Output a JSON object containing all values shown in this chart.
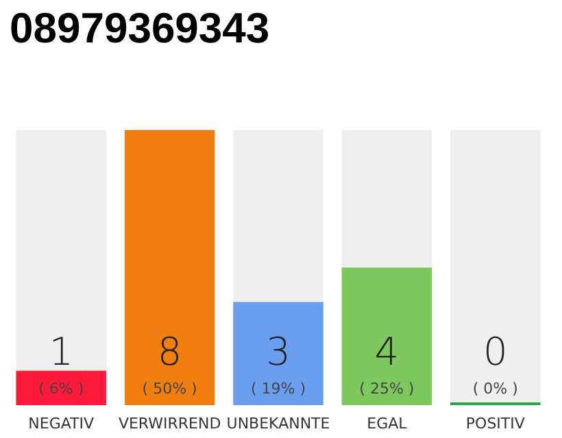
{
  "chart_data": {
    "type": "bar",
    "title": "08979369343",
    "categories": [
      "NEGATIV",
      "VERWIRREND",
      "UNBEKANNTE",
      "EGAL",
      "POSITIV"
    ],
    "values": [
      1,
      8,
      3,
      4,
      0
    ],
    "colors": [
      "#ff1a3c",
      "#f07f0f",
      "#6a9ff0",
      "#7dc95e",
      "#21a84a"
    ],
    "data_labels": true,
    "annotations": [
      "( 6% )",
      "( 50% )",
      "( 19% )",
      "( 25% )",
      "( 0% )"
    ]
  }
}
